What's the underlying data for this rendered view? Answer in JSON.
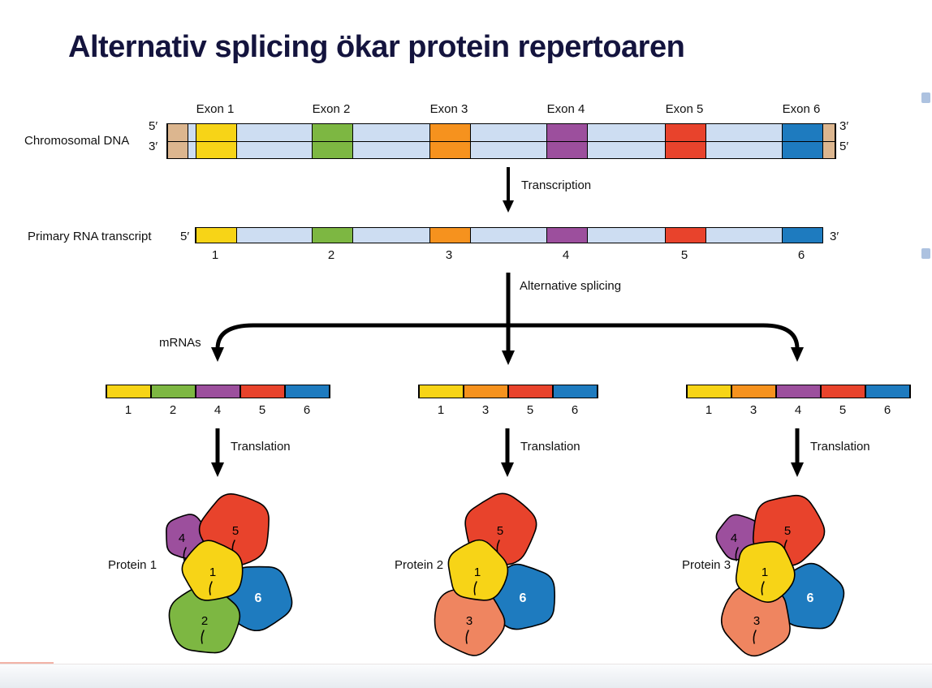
{
  "title": "Alternativ splicing ökar protein repertoaren",
  "palette": {
    "exon_colors": {
      "1": "#f7d417",
      "2": "#7db742",
      "3": "#f6921e",
      "4": "#9c4f9d",
      "5": "#e8432c",
      "6": "#1e7bbf"
    },
    "protein_subunit_colors": {
      "1": "#f7d417",
      "2": "#7db742",
      "3": "#ef8560",
      "4": "#9c4f9d",
      "5": "#e8432c",
      "6": "#1e7bbf"
    },
    "intron": "#cdddf2",
    "dna_end": "#dcb68f",
    "outline": "#000000",
    "title_color": "#14143e"
  },
  "dna": {
    "row_label": "Chromosomal DNA",
    "exon_labels": [
      "Exon 1",
      "Exon 2",
      "Exon 3",
      "Exon 4",
      "Exon 5",
      "Exon 6"
    ],
    "left_top": "5′",
    "left_bottom": "3′",
    "right_top": "3′",
    "right_bottom": "5′"
  },
  "transcription_label": "Transcription",
  "rna": {
    "row_label": "Primary RNA transcript",
    "left": "5′",
    "right": "3′",
    "exon_numbers": [
      "1",
      "2",
      "3",
      "4",
      "5",
      "6"
    ]
  },
  "splicing_label": "Alternative splicing",
  "mrnas_label": "mRNAs",
  "translation_label": "Translation",
  "mrnas": [
    {
      "exons": [
        "1",
        "2",
        "4",
        "5",
        "6"
      ]
    },
    {
      "exons": [
        "1",
        "3",
        "5",
        "6"
      ]
    },
    {
      "exons": [
        "1",
        "3",
        "4",
        "5",
        "6"
      ]
    }
  ],
  "proteins": [
    {
      "label": "Protein 1",
      "subunits": [
        "1",
        "2",
        "4",
        "5",
        "6"
      ]
    },
    {
      "label": "Protein 2",
      "subunits": [
        "1",
        "3",
        "5",
        "6"
      ]
    },
    {
      "label": "Protein 3",
      "subunits": [
        "1",
        "3",
        "4",
        "5",
        "6"
      ]
    }
  ]
}
